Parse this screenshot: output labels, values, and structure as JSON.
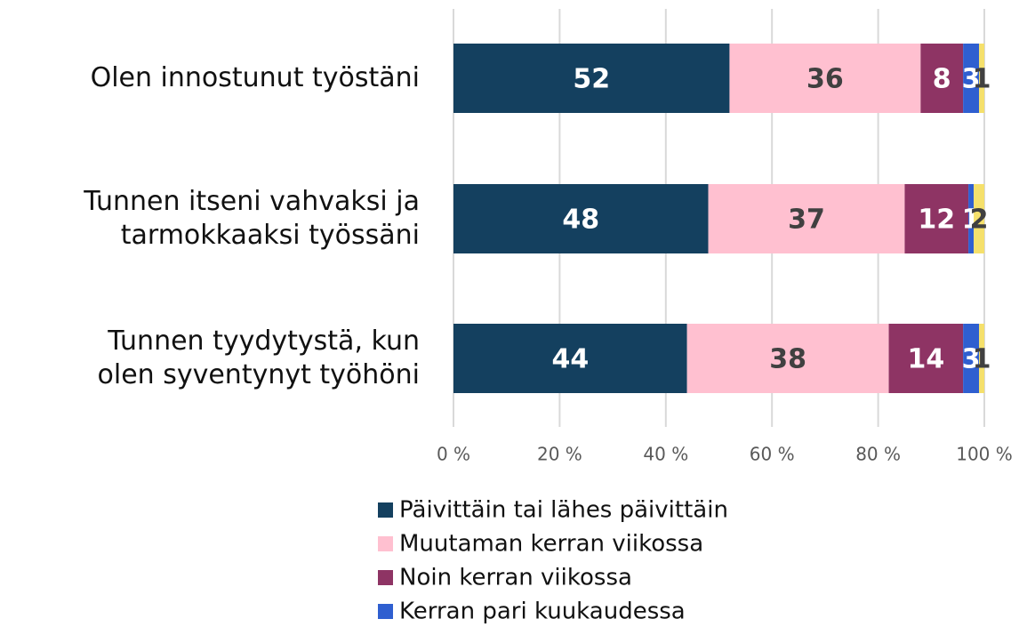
{
  "chart_data": {
    "type": "stacked_barh",
    "categories": [
      "Olen innostunut työstäni",
      "Tunnen itseni vahvaksi ja\ntarmokkaaksi työssäni",
      "Tunnen tyydytystä, kun\nolen syventynyt työhöni"
    ],
    "series": [
      {
        "name": "Päivittäin tai lähes päivittäin",
        "color": "#14405f",
        "values": [
          52,
          48,
          44
        ]
      },
      {
        "name": "Muutaman kerran viikossa",
        "color": "#ffc0d0",
        "values": [
          36,
          37,
          38
        ]
      },
      {
        "name": "Noin kerran viikossa",
        "color": "#8e3464",
        "values": [
          8,
          12,
          14
        ]
      },
      {
        "name": "Kerran pari kuukaudessa",
        "color": "#2f5fd0",
        "values": [
          3,
          1,
          3
        ]
      },
      {
        "color": "#f5e06b",
        "values": [
          1,
          2,
          1
        ]
      }
    ],
    "xlim": [
      0,
      100
    ],
    "xticks": [
      {
        "value": 0,
        "label": "0 %"
      },
      {
        "value": 20,
        "label": "20 %"
      },
      {
        "value": 40,
        "label": "40 %"
      },
      {
        "value": 60,
        "label": "60 %"
      },
      {
        "value": 80,
        "label": "80 %"
      },
      {
        "value": 100,
        "label": "100 %"
      }
    ],
    "grid": true
  }
}
